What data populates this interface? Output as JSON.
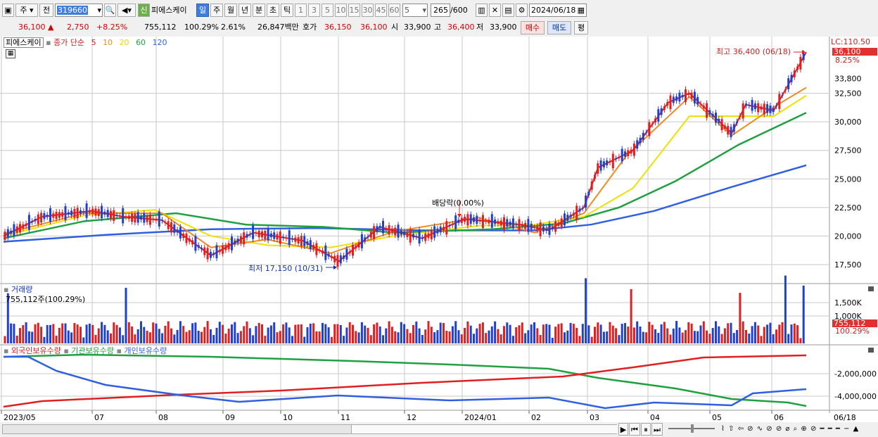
{
  "toolbar": {
    "period_button": "주",
    "prev_label": "전",
    "stock_code": "319660",
    "new_badge": "신",
    "stock_name": "피에스케이",
    "period_tabs": [
      "일",
      "주",
      "월",
      "년",
      "분",
      "초",
      "틱"
    ],
    "selected_tab": "일",
    "minute_intervals": [
      "1",
      "3",
      "5",
      "10",
      "15",
      "30",
      "45",
      "60"
    ],
    "custom_interval": "5",
    "count_value": "265",
    "count_total": "/600",
    "date_value": "2024/06/18"
  },
  "quote": {
    "price": "36,100",
    "change": "2,750",
    "change_rate": "+8.25%",
    "volume": "755,112",
    "volume_rate": "100.29%",
    "turnover": "2.61%",
    "amount": "26,847백만",
    "bid_label": "호가",
    "bid": "36,150",
    "ask": "36,100",
    "open_label": "시",
    "open": "33,900",
    "high_label": "고",
    "high": "36,400",
    "low_label": "저",
    "low": "33,900",
    "buy_label": "매수",
    "sell_label": "매도",
    "avg_label": "평"
  },
  "price_pane": {
    "stock_label": "피에스케이",
    "indicator_label": "종가 단순",
    "ma_periods": [
      "5",
      "10",
      "20",
      "60",
      "120"
    ],
    "lc_label": "LC:110.50",
    "price_tag": "36,100",
    "rate_tag": "8.25%",
    "high_annotation": "최고 36,400 (06/18)",
    "low_annotation": "최저 17,150 (10/31)",
    "dividend_annotation": "배당락(0.00%)",
    "y_ticks": [
      "32,500",
      "30,000",
      "27,500",
      "25,000",
      "22,500",
      "20,000",
      "17,500"
    ],
    "y_partial": "33,800"
  },
  "volume_pane": {
    "title": "거래량",
    "value_label": "755,112주(100.29%)",
    "y_ticks": [
      "1,500K",
      "1,000K"
    ],
    "tag": "755,112",
    "rate_tag": "100.29%"
  },
  "holding_pane": {
    "legend": [
      "외국인보유수량",
      "기관보유수량",
      "개인보유수량"
    ],
    "y_ticks": [
      "-2,000,000",
      "-4,000,000"
    ]
  },
  "x_axis": {
    "labels": [
      "2023/05",
      "07",
      "08",
      "09",
      "10",
      "11",
      "12",
      "2024/01",
      "02",
      "03",
      "04",
      "05",
      "06",
      "06/18"
    ]
  },
  "colors": {
    "ma5": "#e02020",
    "ma10": "#f08a20",
    "ma20": "#f0e000",
    "ma60": "#20a040",
    "ma120": "#3060e0",
    "up": "#e02020",
    "down": "#2040d0"
  }
}
